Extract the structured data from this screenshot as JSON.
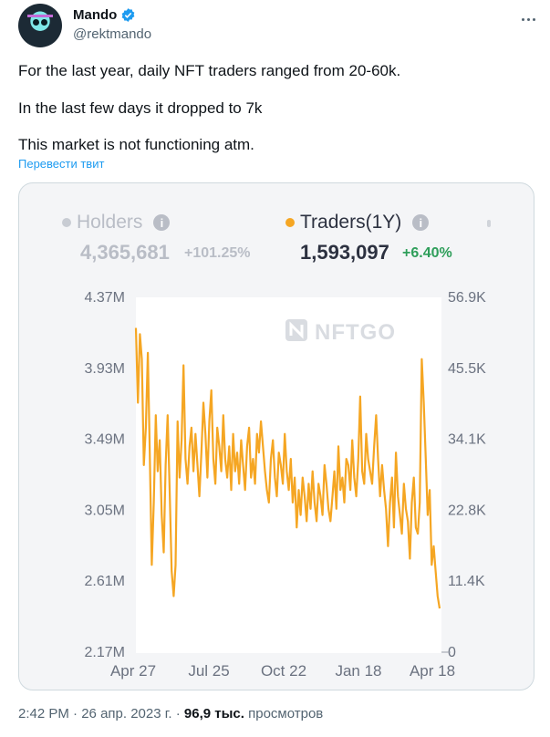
{
  "tweet": {
    "author_name": "Mando",
    "author_handle": "@rektmando",
    "line1": "For the last year, daily NFT traders ranged from 20-60k.",
    "line2": "In the last few days it dropped to 7k",
    "line3": "This market is not functioning atm.",
    "translate_label": "Перевести твит",
    "time": "2:42 PM",
    "sep1": "·",
    "date": "26 апр. 2023 г.",
    "sep2": "·",
    "views_count": "96,9 тыс.",
    "views_label": "просмотров",
    "icons": {
      "verified": "verified-badge-icon",
      "more": "more-dots-icon"
    },
    "colors": {
      "accent": "#1d9bf0",
      "text": "#0f1419",
      "muted": "#536471"
    }
  },
  "card": {
    "holders_label": "Holders",
    "holders_value": "4,365,681",
    "holders_change": "+101.25%",
    "traders_label": "Traders(1Y)",
    "traders_value": "1,593,097",
    "traders_change": "+6.40%",
    "watermark": "NFTGO",
    "colors": {
      "traders": "#f5a623",
      "holders": "#c8ccd3",
      "positive": "#2e9e5a"
    }
  },
  "chart_data": {
    "type": "line",
    "title": "",
    "x_ticks": [
      "Apr 27",
      "Jul 25",
      "Oct 22",
      "Jan 18",
      "Apr 18"
    ],
    "y_left_ticks": [
      "4.37M",
      "3.93M",
      "3.49M",
      "3.05M",
      "2.61M",
      "2.17M"
    ],
    "y_right_ticks": [
      "56.9K",
      "45.5K",
      "34.1K",
      "22.8K",
      "11.4K",
      "0"
    ],
    "y_right_range": [
      0,
      56900
    ],
    "grid": false,
    "series": [
      {
        "name": "Traders(1Y)",
        "axis": "right",
        "values": [
          52000,
          40000,
          51000,
          47000,
          30000,
          36000,
          48000,
          32000,
          14000,
          24000,
          38000,
          29000,
          34000,
          22000,
          16000,
          30000,
          38000,
          26000,
          13000,
          9000,
          14000,
          37000,
          28000,
          34000,
          46000,
          31000,
          27000,
          33000,
          36000,
          29000,
          35000,
          30000,
          25000,
          32000,
          40000,
          35000,
          28000,
          37000,
          42000,
          31000,
          27000,
          36000,
          33000,
          29000,
          38000,
          31000,
          28000,
          33000,
          26000,
          35000,
          29000,
          32000,
          27000,
          34000,
          30000,
          26000,
          33000,
          36000,
          28000,
          31000,
          27000,
          35000,
          32000,
          37000,
          33000,
          29000,
          26000,
          24000,
          31000,
          34000,
          28000,
          25000,
          32000,
          30000,
          27000,
          35000,
          29000,
          26000,
          31000,
          24000,
          28000,
          20000,
          26000,
          22000,
          28000,
          25000,
          21000,
          27000,
          23000,
          29000,
          24000,
          21000,
          27000,
          25000,
          22000,
          30000,
          27000,
          23000,
          21000,
          25000,
          29000,
          23000,
          33000,
          26000,
          28000,
          24000,
          31000,
          30000,
          26000,
          34000,
          28000,
          25000,
          31000,
          41000,
          29000,
          27000,
          35000,
          31000,
          29000,
          27000,
          33000,
          38000,
          31000,
          25000,
          30000,
          26000,
          23000,
          17000,
          24000,
          28000,
          20000,
          32000,
          25000,
          22000,
          19000,
          27000,
          23000,
          21000,
          15000,
          24000,
          28000,
          20000,
          19000,
          24000,
          47000,
          40000,
          31000,
          22000,
          26000,
          14000,
          17000,
          13000,
          9000,
          7000
        ]
      }
    ]
  }
}
